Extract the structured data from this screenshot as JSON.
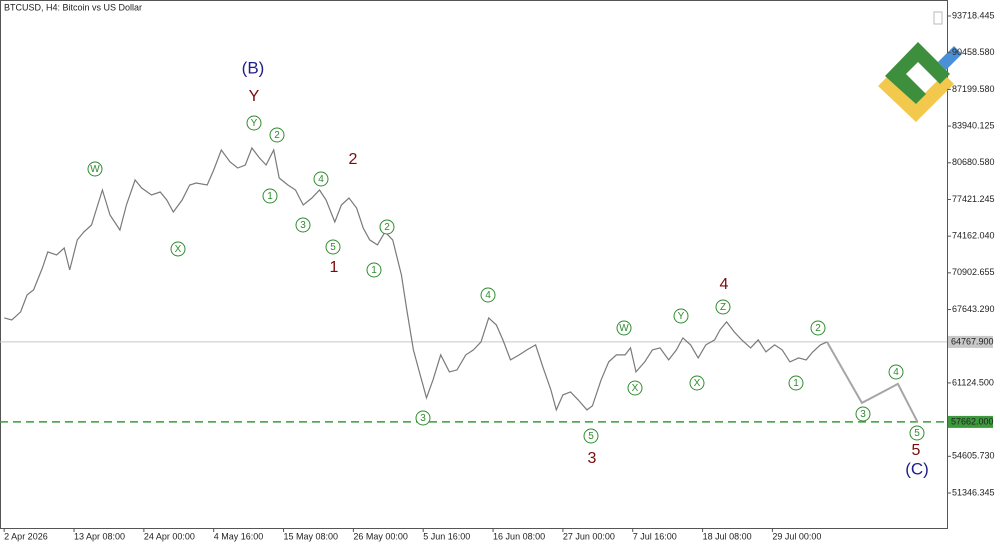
{
  "chart_data": {
    "type": "line",
    "title": "BTCUSD, H4:  Bitcoin vs US Dollar",
    "x": [
      0,
      7,
      15,
      21,
      27,
      35,
      40,
      48,
      55,
      60,
      67,
      73,
      80,
      90,
      97,
      106,
      112,
      120,
      126,
      135,
      143,
      149,
      155,
      163,
      170,
      176,
      186,
      192,
      199,
      207,
      214,
      221,
      227,
      234,
      240,
      247,
      252,
      260,
      267,
      274,
      282,
      289,
      295,
      303,
      309,
      316,
      323,
      329,
      335,
      342,
      349,
      356,
      364,
      369,
      375,
      380,
      387,
      393,
      400,
      408,
      415,
      423,
      430,
      437,
      444,
      451,
      457,
      464,
      472,
      479,
      487,
      494,
      501,
      506,
      512,
      519,
      526,
      534,
      539,
      547,
      554,
      561,
      569,
      574,
      579,
      587,
      594,
      601,
      609,
      616,
      622,
      629,
      636,
      643,
      651,
      656,
      662,
      669,
      676,
      684,
      691,
      698,
      706,
      713,
      720,
      728,
      735,
      741,
      748,
      754
    ],
    "values": [
      66897,
      66720,
      67430,
      68940,
      69384,
      71338,
      72759,
      72492,
      73114,
      71160,
      73825,
      74535,
      75157,
      78265,
      76045,
      74713,
      76933,
      79153,
      78443,
      77821,
      78087,
      77377,
      76311,
      77377,
      78709,
      78887,
      78709,
      80041,
      81817,
      80752,
      80219,
      80485,
      81995,
      81107,
      80485,
      81817,
      79331,
      78709,
      78265,
      76933,
      77555,
      78265,
      77377,
      75423,
      76933,
      77555,
      76667,
      74890,
      73825,
      73381,
      74535,
      73825,
      70716,
      67608,
      64055,
      62279,
      59793,
      61391,
      63611,
      62102,
      62279,
      63611,
      64055,
      64766,
      66897,
      66276,
      64944,
      63167,
      63611,
      64055,
      64500,
      62457,
      60503,
      58727,
      60059,
      60325,
      59615,
      58727,
      59082,
      61391,
      62990,
      63611,
      63611,
      64233,
      62102,
      62990,
      64055,
      64233,
      63167,
      64055,
      65121,
      64500,
      63345,
      64500,
      64944,
      65832,
      66542,
      65654,
      64944,
      64233,
      64944,
      63878,
      64500,
      64055,
      62990,
      63345,
      63167,
      63878,
      64500,
      64767.9
    ],
    "color": "#7a7a7a",
    "projection": {
      "x": [
        754,
        786,
        819,
        837
      ],
      "values": [
        64767.9,
        59350,
        61040,
        57662
      ],
      "color": "#a6a6a6"
    },
    "levels": [
      {
        "value": 64767.9,
        "label": "64767.900",
        "color": "#c8c8c8",
        "dashed": false
      },
      {
        "value": 57662,
        "label": "57662.000",
        "color": "#3c9a3c",
        "dashed": true
      }
    ],
    "xlim": [
      -2,
      864
    ],
    "xticks": [
      {
        "value": 0,
        "label": "2 Apr 2026"
      },
      {
        "value": 64,
        "label": "13 Apr 08:00"
      },
      {
        "value": 128,
        "label": "24 Apr 00:00"
      },
      {
        "value": 192,
        "label": "4 May 16:00"
      },
      {
        "value": 256,
        "label": "15 May 08:00"
      },
      {
        "value": 320,
        "label": "26 May 00:00"
      },
      {
        "value": 384,
        "label": "5 Jun 16:00"
      },
      {
        "value": 448,
        "label": "16 Jun 08:00"
      },
      {
        "value": 512,
        "label": "27 Jun 00:00"
      },
      {
        "value": 576,
        "label": "7 Jul 16:00"
      },
      {
        "value": 640,
        "label": "18 Jul 08:00"
      },
      {
        "value": 704,
        "label": "29 Jul 00:00"
      }
    ],
    "ylim": [
      48237,
      95140
    ],
    "yticks": [
      93718.445,
      {
        "value": 90458.58,
        "label": "90458.580"
      },
      {
        "value": 87199.58,
        "label": "87199.580"
      },
      83940.125,
      {
        "value": 80680.58,
        "label": "80680.580"
      },
      77421.245,
      {
        "value": 74162.04,
        "label": "74162.040"
      },
      70902.655,
      {
        "value": 67643.29,
        "label": "67643.290"
      },
      {
        "value": 61124.5,
        "label": "61124.500"
      },
      {
        "value": 54605.73,
        "label": "54605.730"
      },
      51346.345
    ],
    "annotations": [
      "(B)",
      "Y",
      "W",
      "X",
      "Y",
      "2",
      "1",
      "4",
      "3",
      "5",
      "2",
      "1",
      "2",
      "1",
      "4",
      "3",
      "5",
      "3",
      "W",
      "X",
      "Y",
      "X",
      "Z",
      "4",
      "1",
      "2",
      "3",
      "4",
      "5",
      "5",
      "(C)"
    ]
  }
}
